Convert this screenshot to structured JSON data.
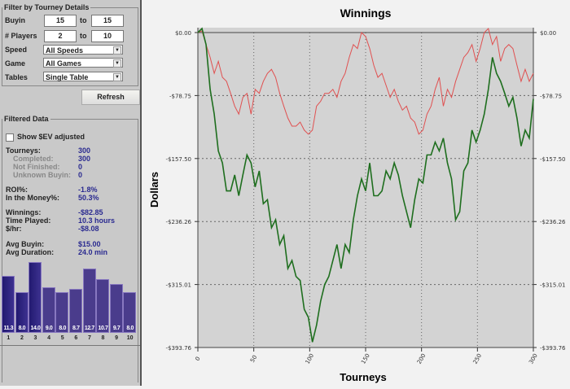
{
  "filter": {
    "title": "Filter by Tourney Details",
    "buyin_label": "Buyin",
    "buyin_from": "15",
    "buyin_to": "15",
    "to": "to",
    "players_label": "# Players",
    "players_from": "2",
    "players_to": "10",
    "speed_label": "Speed",
    "speed": "All Speeds",
    "game_label": "Game",
    "game": "All Games",
    "tables_label": "Tables",
    "tables": "Single Table",
    "refresh": "Refresh"
  },
  "filtered": {
    "title": "Filtered Data",
    "ev_label": "Show $EV adjusted",
    "ev_checked": false,
    "stats": [
      {
        "label": "Tourneys:",
        "value": "300",
        "cls": ""
      },
      {
        "label": "Completed:",
        "value": "300",
        "cls": "g"
      },
      {
        "label": "Not Finished:",
        "value": "0",
        "cls": "g"
      },
      {
        "label": "Unknown Buyin:",
        "value": "0",
        "cls": "g"
      },
      {
        "label": "ROI%:",
        "value": "-1.8%",
        "cls": ""
      },
      {
        "label": "In the Money%:",
        "value": "50.3%",
        "cls": ""
      },
      {
        "label": "Winnings:",
        "value": "-$82.85",
        "cls": ""
      },
      {
        "label": "Time Played:",
        "value": "10.3 hours",
        "cls": ""
      },
      {
        "label": "$/hr:",
        "value": "-$8.08",
        "cls": ""
      },
      {
        "label": "Avg Buyin:",
        "value": "$15.00",
        "cls": ""
      },
      {
        "label": "Avg Duration:",
        "value": "24.0 min",
        "cls": ""
      }
    ]
  },
  "finish_histogram": {
    "places": [
      "1",
      "2",
      "3",
      "4",
      "5",
      "6",
      "7",
      "8",
      "9",
      "10"
    ],
    "values": [
      11.3,
      8.0,
      14.0,
      9.0,
      8.0,
      8.7,
      12.7,
      10.7,
      9.7,
      8.0
    ],
    "labels": [
      "11.3",
      "8.0",
      "14.0",
      "9.0",
      "8.0",
      "8.7",
      "12.7",
      "10.7",
      "9.7",
      "8.0"
    ]
  },
  "chart_data": {
    "type": "line",
    "title": "Winnings",
    "xlabel": "Tourneys",
    "ylabel": "Dollars",
    "xlim": [
      0,
      300
    ],
    "ylim": [
      -393.76,
      0
    ],
    "xticks": [
      "0",
      "50",
      "100",
      "150",
      "200",
      "250",
      "300"
    ],
    "yticks": [
      "$0.00",
      "-$78.75",
      "-$157.50",
      "-$236.26",
      "-$315.01",
      "-$393.76"
    ],
    "ytick_values": [
      0,
      -78.75,
      -157.5,
      -236.26,
      -315.01,
      -393.76
    ],
    "x_step": 3.6585,
    "series": [
      {
        "name": "Winnings",
        "color": "#1e6e1e",
        "values": [
          0,
          5,
          -15,
          -71,
          -102,
          -148,
          -163,
          -198,
          -198,
          -178,
          -204,
          -178,
          -153,
          -163,
          -193,
          -173,
          -214,
          -209,
          -244,
          -234,
          -265,
          -254,
          -295,
          -285,
          -305,
          -310,
          -346,
          -356,
          -387,
          -366,
          -336,
          -315,
          -305,
          -285,
          -265,
          -295,
          -265,
          -275,
          -234,
          -204,
          -183,
          -198,
          -163,
          -204,
          -204,
          -198,
          -173,
          -183,
          -163,
          -178,
          -204,
          -224,
          -244,
          -209,
          -183,
          -188,
          -153,
          -153,
          -137,
          -148,
          -132,
          -163,
          -183,
          -234,
          -224,
          -173,
          -163,
          -122,
          -137,
          -122,
          -102,
          -71,
          -31,
          -51,
          -61,
          -76,
          -92,
          -81,
          -107,
          -142,
          -122,
          -132,
          -83
        ]
      },
      {
        "name": "$EV adjusted",
        "color": "#e05050",
        "values": [
          0,
          2,
          -15,
          -31,
          -51,
          -36,
          -56,
          -61,
          -76,
          -92,
          -102,
          -81,
          -76,
          -102,
          -71,
          -76,
          -61,
          -51,
          -46,
          -56,
          -76,
          -92,
          -107,
          -117,
          -117,
          -112,
          -122,
          -127,
          -122,
          -92,
          -86,
          -76,
          -76,
          -71,
          -81,
          -61,
          -51,
          -31,
          -15,
          -20,
          0,
          -5,
          -20,
          -41,
          -56,
          -51,
          -66,
          -81,
          -71,
          -86,
          -97,
          -92,
          -107,
          -112,
          -127,
          -122,
          -102,
          -92,
          -71,
          -56,
          -92,
          -71,
          -81,
          -61,
          -46,
          -31,
          -25,
          -15,
          -36,
          -20,
          0,
          5,
          -15,
          -5,
          -36,
          -20,
          -15,
          -20,
          -41,
          -61,
          -46,
          -61,
          -51
        ]
      }
    ]
  }
}
